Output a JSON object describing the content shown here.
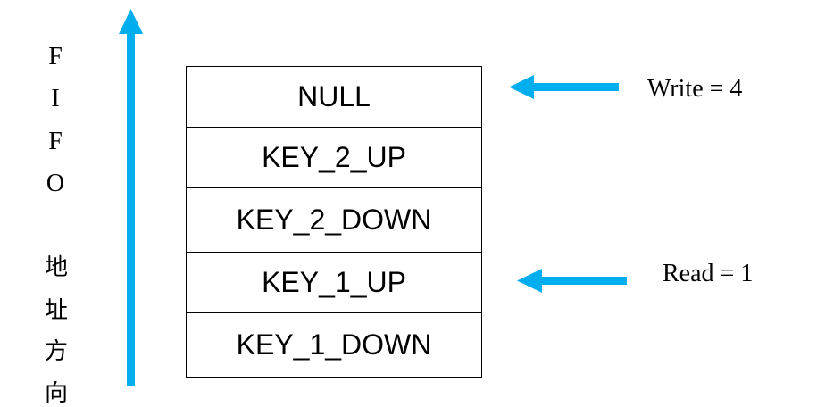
{
  "colors": {
    "arrow": "#00AEEF",
    "text": "#000000",
    "border": "#000000"
  },
  "side_label": {
    "letters": [
      "F",
      "I",
      "F",
      "O"
    ],
    "chars": [
      "地",
      "址",
      "方",
      "向"
    ]
  },
  "fifo": {
    "rows": [
      "NULL",
      "KEY_2_UP",
      "KEY_2_DOWN",
      "KEY_1_UP",
      "KEY_1_DOWN"
    ]
  },
  "pointers": {
    "write_label": "Write = 4",
    "read_label": "Read = 1"
  }
}
